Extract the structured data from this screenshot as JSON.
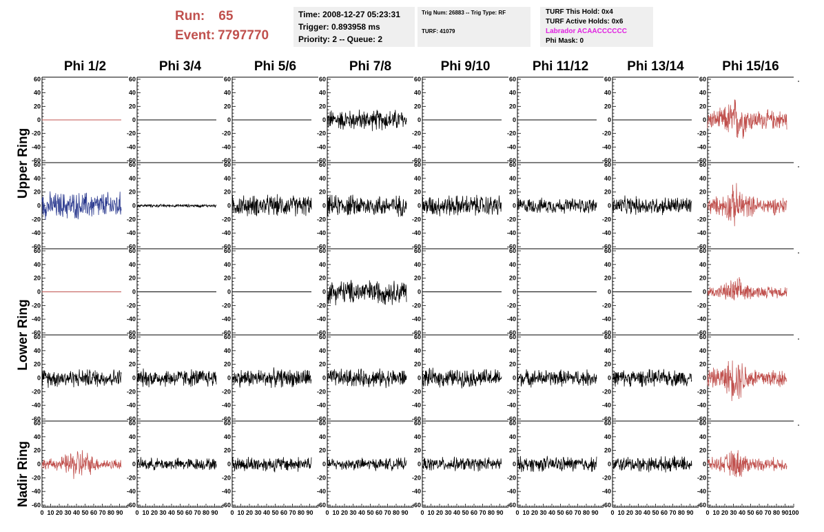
{
  "run_info": {
    "run_label": "Run:",
    "run_value": "65",
    "event_label": "Event:",
    "event_value": "7797770"
  },
  "time_box": {
    "time": "Time: 2008-12-27 05:23:31",
    "trigger": "Trigger: 0.893958 ms",
    "priority": "Priority: 2 -- Queue: 2"
  },
  "trig_box": {
    "trig_num": "Trig Num: 26883 -- Trig Type: RF",
    "turf": "TURF: 41079"
  },
  "turf_box": {
    "this_hold": "TURF This Hold: 0x4",
    "active_holds": "TURF Active Holds: 0x6",
    "labrador": "Labrador ACAACCCCCC",
    "phi_mask": "Phi Mask: 0"
  },
  "colors": {
    "red": "#c0504d",
    "blue": "#2b3a8f",
    "black": "#000000",
    "magenta": "#e020e0",
    "box_bg": "#efefef"
  },
  "chart_data": {
    "type": "line",
    "columns": [
      "Phi 1/2",
      "Phi 3/4",
      "Phi 5/6",
      "Phi 7/8",
      "Phi 9/10",
      "Phi 11/12",
      "Phi 13/14",
      "Phi 15/16"
    ],
    "row_groups": [
      "Upper Ring",
      "Lower Ring",
      "Nadir Ring"
    ],
    "xlim": [
      0,
      100
    ],
    "ylim": [
      -60,
      60
    ],
    "x_ticks": [
      "0",
      "10",
      "20",
      "30",
      "40",
      "50",
      "60",
      "70",
      "80",
      "90",
      "100"
    ],
    "y_ticks": [
      "60",
      "40",
      "20",
      "0",
      "-20",
      "-40",
      "-60"
    ],
    "trace_colors": [
      [
        "red",
        "black",
        "black",
        "black",
        "black",
        "black",
        "black",
        "red"
      ],
      [
        "blue",
        "black",
        "black",
        "black",
        "black",
        "black",
        "black",
        "red"
      ],
      [
        "red",
        "black",
        "black",
        "black",
        "black",
        "black",
        "black",
        "red"
      ],
      [
        "black",
        "black",
        "black",
        "black",
        "black",
        "black",
        "black",
        "red"
      ],
      [
        "red",
        "black",
        "black",
        "black",
        "black",
        "black",
        "black",
        "red"
      ]
    ],
    "trace_amplitudes": [
      [
        0,
        0,
        0,
        14,
        0,
        0,
        0,
        20
      ],
      [
        18,
        2,
        14,
        14,
        14,
        10,
        12,
        18
      ],
      [
        0,
        0,
        0,
        16,
        0,
        0,
        0,
        12
      ],
      [
        12,
        12,
        12,
        12,
        12,
        11,
        11,
        20
      ],
      [
        14,
        8,
        10,
        8,
        9,
        10,
        10,
        13
      ]
    ]
  }
}
